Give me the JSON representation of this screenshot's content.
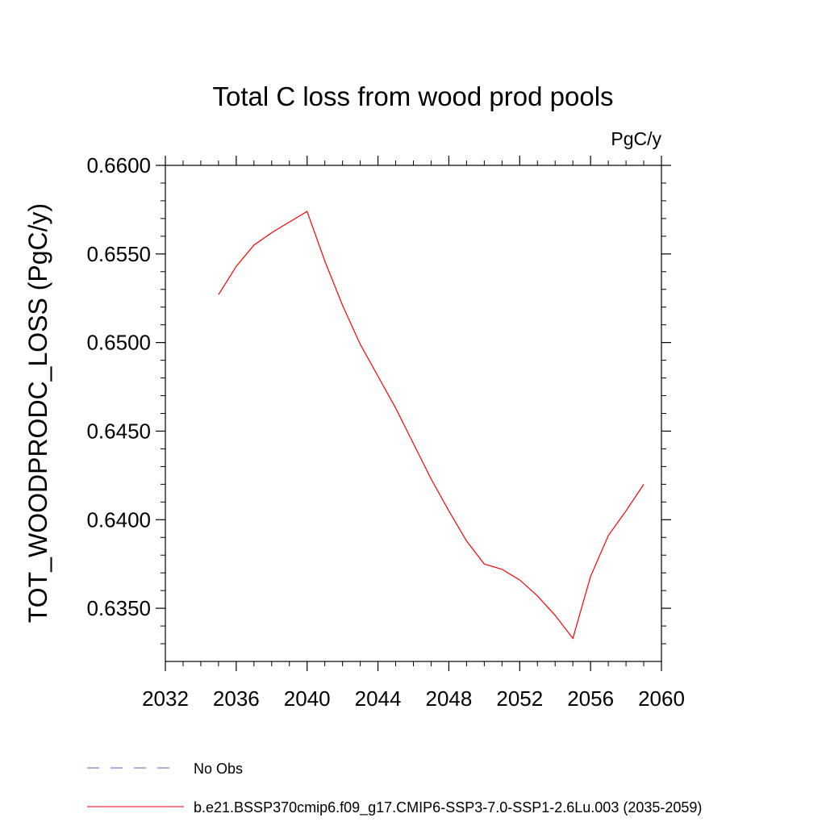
{
  "chart_data": {
    "type": "line",
    "title": "Total C loss from wood prod pools",
    "units": "PgC/y",
    "xlabel": "",
    "ylabel": "TOT_WOODPRODC_LOSS  (PgC/y)",
    "xlim": [
      2032,
      2060
    ],
    "ylim": [
      0.632,
      0.66
    ],
    "xticks": [
      2032,
      2036,
      2040,
      2044,
      2048,
      2052,
      2056,
      2060
    ],
    "xtick_labels": [
      "2032",
      "2036",
      "2040",
      "2044",
      "2048",
      "2052",
      "2056",
      "2060"
    ],
    "yticks": [
      0.635,
      0.64,
      0.645,
      0.65,
      0.655,
      0.66
    ],
    "ytick_labels": [
      "0.6350",
      "0.6400",
      "0.6450",
      "0.6500",
      "0.6550",
      "0.6600"
    ],
    "grid": false,
    "legend_position": "bottom",
    "series": [
      {
        "name": "No Obs",
        "color": "#6a5acd",
        "style": "dashed",
        "x": [],
        "y": []
      },
      {
        "name": "b.e21.BSSP370cmip6.f09_g17.CMIP6-SSP3-7.0-SSP1-2.6Lu.003 (2035-2059)",
        "color": "#ff0000",
        "style": "solid",
        "x": [
          2035,
          2036,
          2037,
          2038,
          2039,
          2040,
          2041,
          2042,
          2043,
          2044,
          2045,
          2046,
          2047,
          2048,
          2049,
          2050,
          2051,
          2052,
          2053,
          2054,
          2055,
          2056,
          2057,
          2058,
          2059
        ],
        "y": [
          0.6527,
          0.6543,
          0.6555,
          0.6562,
          0.6568,
          0.6574,
          0.6546,
          0.6521,
          0.6499,
          0.6481,
          0.6463,
          0.6443,
          0.6423,
          0.6405,
          0.6388,
          0.6375,
          0.6372,
          0.6366,
          0.6357,
          0.6346,
          0.6333,
          0.6368,
          0.6391,
          0.6405,
          0.642
        ]
      }
    ]
  }
}
